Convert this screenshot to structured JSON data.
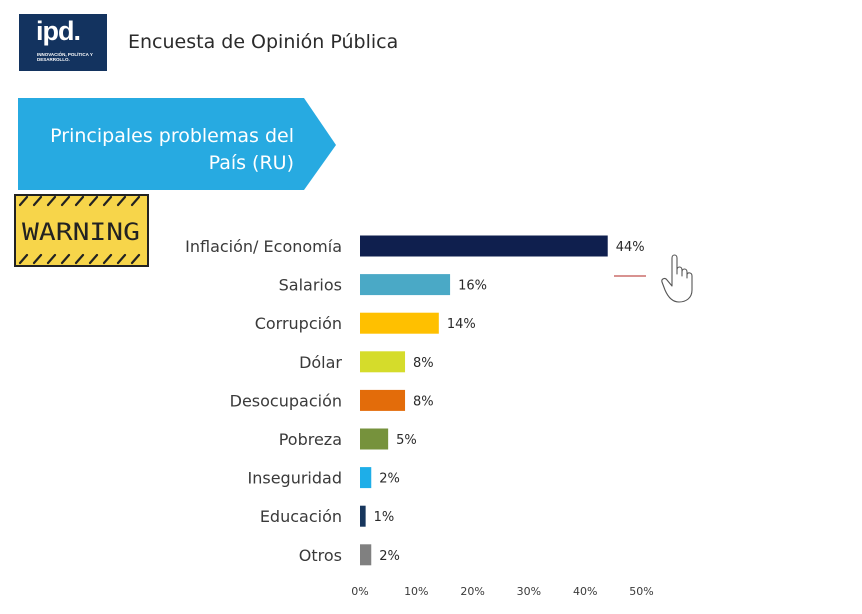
{
  "header": {
    "logo_text": "ipd.",
    "logo_subtitle": "INNOVACIÓN, POLÍTICA Y DESARROLLO.",
    "title": "Encuesta de Opinión Pública"
  },
  "banner": {
    "line1": "Principales problemas del",
    "line2": "País (RU)",
    "color": "#27aae1"
  },
  "warning_sign": {
    "text": "WARNING",
    "color": "#f7d54a"
  },
  "chart_data": {
    "type": "bar",
    "orientation": "horizontal",
    "categories": [
      "Inflación/ Economía",
      "Salarios",
      "Corrupción",
      "Dólar",
      "Desocupación",
      "Pobreza",
      "Inseguridad",
      "Educación",
      "Otros"
    ],
    "values": [
      44,
      16,
      14,
      8,
      8,
      5,
      2,
      1,
      2
    ],
    "value_labels": [
      "44%",
      "16%",
      "14%",
      "8%",
      "8%",
      "5%",
      "2%",
      "1%",
      "2%"
    ],
    "colors": [
      "#0f1f4e",
      "#4aa9c6",
      "#ffc000",
      "#d5dc2b",
      "#e36c0a",
      "#76923c",
      "#1eaee8",
      "#17365d",
      "#808080"
    ],
    "x_ticks": [
      "0%",
      "10%",
      "20%",
      "30%",
      "40%",
      "50%"
    ],
    "xlim": [
      0,
      50
    ],
    "grid": false,
    "title": "",
    "xlabel": "",
    "ylabel": ""
  }
}
